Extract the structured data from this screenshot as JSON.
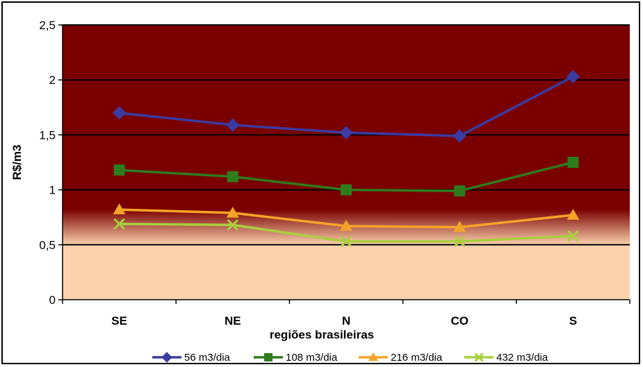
{
  "chart_data": {
    "type": "line",
    "title": "",
    "xlabel": "regiões brasileiras",
    "ylabel": "R$/m3",
    "categories": [
      "SE",
      "NE",
      "N",
      "CO",
      "S"
    ],
    "ylim": [
      0,
      2.5
    ],
    "yticks": [
      "0",
      "0,5",
      "1",
      "1,5",
      "2",
      "2,5"
    ],
    "ytick_values": [
      0,
      0.5,
      1,
      1.5,
      2,
      2.5
    ],
    "grid": true,
    "legend_position": "bottom",
    "series": [
      {
        "name": "56 m3/dia",
        "values": [
          1.7,
          1.59,
          1.52,
          1.49,
          2.03
        ],
        "color": "#3b3ba3",
        "marker": "diamond"
      },
      {
        "name": "108 m3/dia",
        "values": [
          1.18,
          1.12,
          1.0,
          0.99,
          1.25
        ],
        "color": "#2e7d1c",
        "marker": "square"
      },
      {
        "name": "216 m3/dia",
        "values": [
          0.82,
          0.79,
          0.67,
          0.66,
          0.77
        ],
        "color": "#f5a328",
        "marker": "triangle"
      },
      {
        "name": "432 m3/dia",
        "values": [
          0.69,
          0.68,
          0.53,
          0.53,
          0.58
        ],
        "color": "#a9cf3c",
        "marker": "x"
      }
    ],
    "background": {
      "upper_color": "#7a0000",
      "lower_color": "#fbd2ad",
      "transition_range": [
        0.5,
        0.82
      ]
    }
  }
}
